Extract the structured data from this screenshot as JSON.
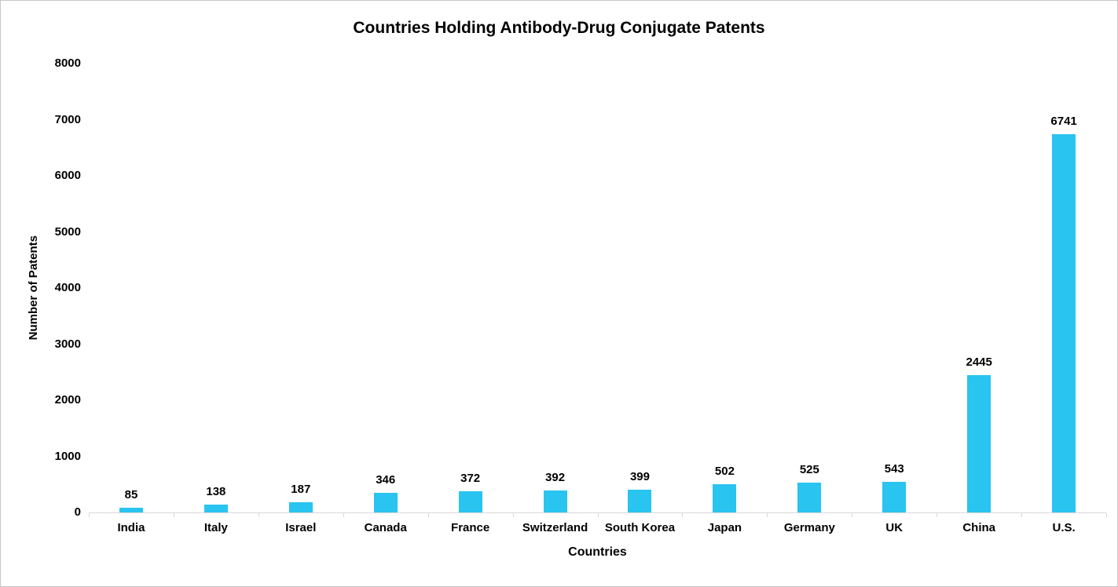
{
  "chart_data": {
    "type": "bar",
    "title": "Countries Holding Antibody-Drug Conjugate Patents",
    "xlabel": "Countries",
    "ylabel": "Number of Patents",
    "categories": [
      "India",
      "Italy",
      "Israel",
      "Canada",
      "France",
      "Switzerland",
      "South Korea",
      "Japan",
      "Germany",
      "UK",
      "China",
      "U.S."
    ],
    "values": [
      85,
      138,
      187,
      346,
      372,
      392,
      399,
      502,
      525,
      543,
      2445,
      6741
    ],
    "ylim": [
      0,
      8000
    ],
    "yticks": [
      0,
      1000,
      2000,
      3000,
      4000,
      5000,
      6000,
      7000,
      8000
    ],
    "grid": false,
    "legend": "none",
    "bar_color": "#29C4F0",
    "axis_color": "#D9D9D9",
    "text_color": "#000000"
  }
}
